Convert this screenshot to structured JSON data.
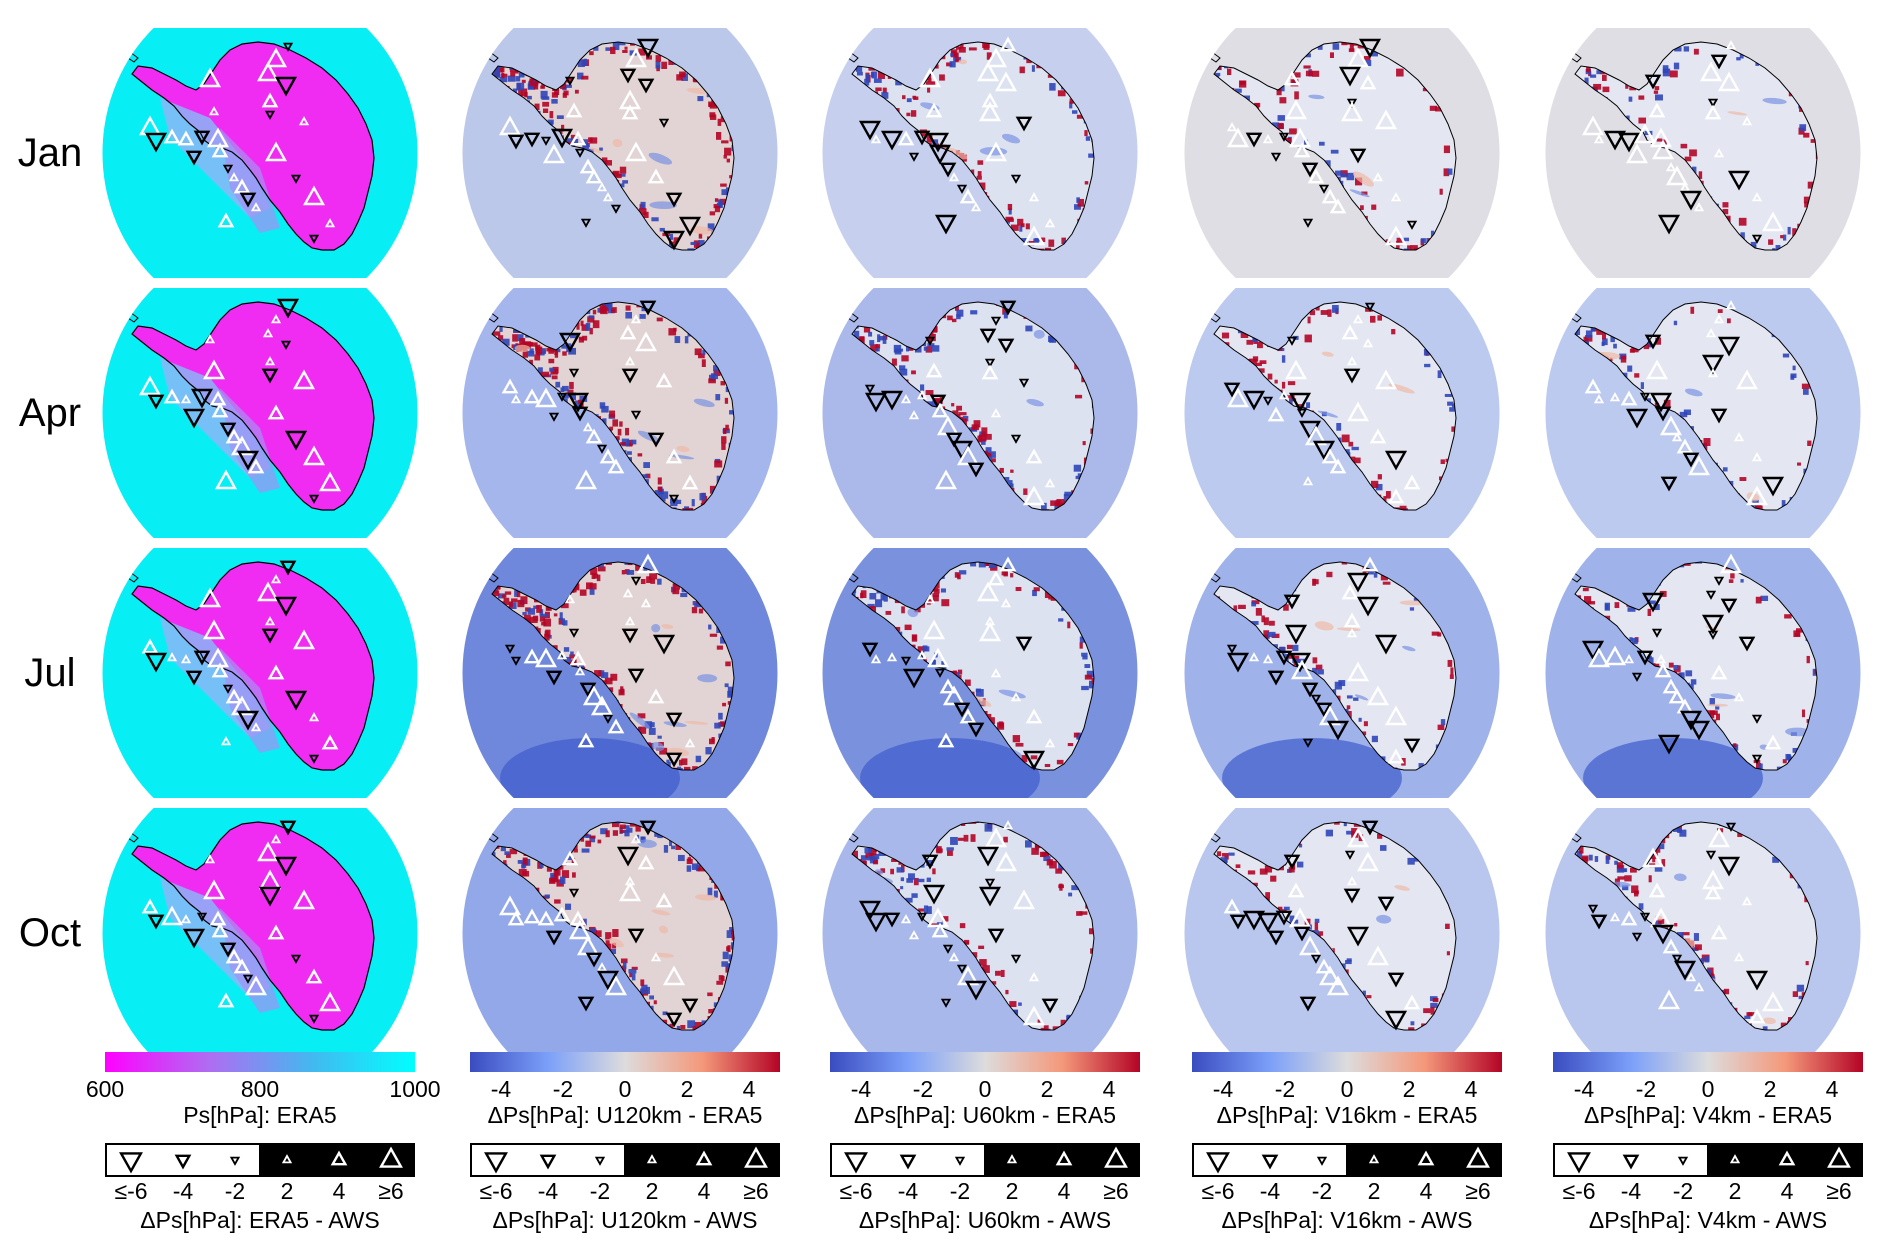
{
  "rows": [
    {
      "label": "Jan"
    },
    {
      "label": "Apr"
    },
    {
      "label": "Jul"
    },
    {
      "label": "Oct"
    }
  ],
  "columns": [
    {
      "id": "era5",
      "fill_style": "magenta-cyan",
      "colorbar": {
        "colors": [
          "#ff00ff",
          "#b06cf2",
          "#43b8f0",
          "#00ffff"
        ],
        "ticks": [
          "600",
          "800",
          "1000"
        ],
        "title": "Ps[hPa]: ERA5"
      },
      "symbol_legend_title": "ΔPs[hPa]: ERA5 - AWS"
    },
    {
      "id": "u120",
      "fill_style": "diverging-strong",
      "colorbar": {
        "colors": [
          "#3a4cc0",
          "#7b9ff9",
          "#dddcdc",
          "#f4987a",
          "#b40426"
        ],
        "ticks": [
          "-4",
          "-2",
          "0",
          "2",
          "4"
        ],
        "title": "ΔPs[hPa]: U120km - ERA5"
      },
      "symbol_legend_title": "ΔPs[hPa]: U120km - AWS"
    },
    {
      "id": "u60",
      "fill_style": "diverging-medium",
      "colorbar": {
        "colors": [
          "#3a4cc0",
          "#7b9ff9",
          "#dddcdc",
          "#f4987a",
          "#b40426"
        ],
        "ticks": [
          "-4",
          "-2",
          "0",
          "2",
          "4"
        ],
        "title": "ΔPs[hPa]: U60km - ERA5"
      },
      "symbol_legend_title": "ΔPs[hPa]: U60km - AWS"
    },
    {
      "id": "v16",
      "fill_style": "diverging-light",
      "colorbar": {
        "colors": [
          "#3a4cc0",
          "#7b9ff9",
          "#dddcdc",
          "#f4987a",
          "#b40426"
        ],
        "ticks": [
          "-4",
          "-2",
          "0",
          "2",
          "4"
        ],
        "title": "ΔPs[hPa]: V16km - ERA5"
      },
      "symbol_legend_title": "ΔPs[hPa]: V16km - AWS"
    },
    {
      "id": "v4",
      "fill_style": "diverging-light",
      "colorbar": {
        "colors": [
          "#3a4cc0",
          "#7b9ff9",
          "#dddcdc",
          "#f4987a",
          "#b40426"
        ],
        "ticks": [
          "-4",
          "-2",
          "0",
          "2",
          "4"
        ],
        "title": "ΔPs[hPa]: V4km - ERA5"
      },
      "symbol_legend_title": "ΔPs[hPa]: V4km - AWS"
    }
  ],
  "symbol_legend": {
    "ticks": [
      "≤-6",
      "-4",
      "-2",
      "2",
      "4",
      "≥6"
    ],
    "negative_color": "#000000",
    "positive_color": "#ffffff"
  },
  "colors": {
    "ocean_era5": "#08eef5",
    "ice_era5": "#f02cf2",
    "coast_line": "#000000",
    "diverging_blue": "#4a66d8",
    "diverging_red": "#b40426",
    "diverging_white": "#e6e8ef"
  }
}
